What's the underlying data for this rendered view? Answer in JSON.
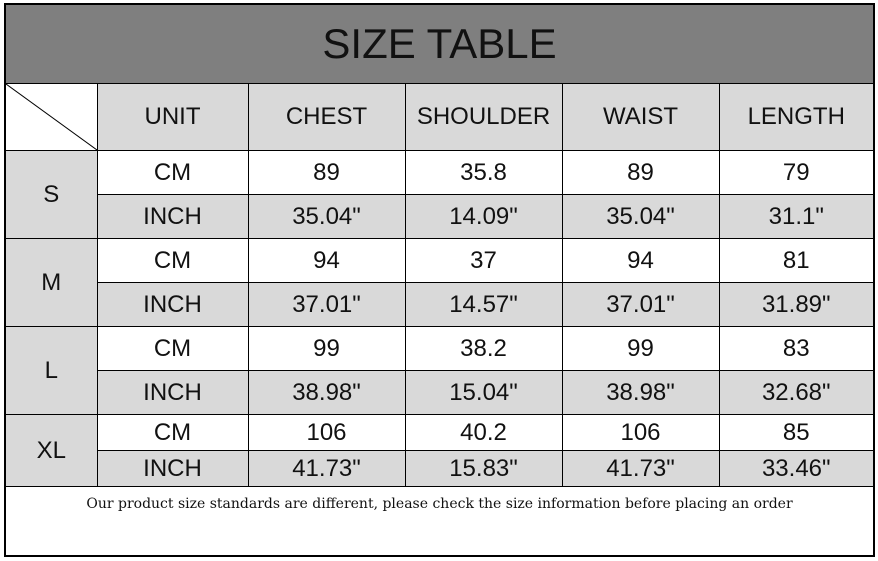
{
  "title": "SIZE TABLE",
  "headers": [
    "UNIT",
    "CHEST",
    "SHOULDER",
    "WAIST",
    "LENGTH"
  ],
  "sizes": [
    {
      "label": "S",
      "cm": {
        "unit": "CM",
        "values": [
          "89",
          "35.8",
          "89",
          "79"
        ]
      },
      "inch": {
        "unit": "INCH",
        "values": [
          "35.04\"",
          "14.09\"",
          "35.04\"",
          "31.1\""
        ]
      }
    },
    {
      "label": "M",
      "cm": {
        "unit": "CM",
        "values": [
          "94",
          "37",
          "94",
          "81"
        ]
      },
      "inch": {
        "unit": "INCH",
        "values": [
          "37.01\"",
          "14.57\"",
          "37.01\"",
          "31.89\""
        ]
      }
    },
    {
      "label": "L",
      "cm": {
        "unit": "CM",
        "values": [
          "99",
          "38.2",
          "99",
          "83"
        ]
      },
      "inch": {
        "unit": "INCH",
        "values": [
          "38.98\"",
          "15.04\"",
          "38.98\"",
          "32.68\""
        ]
      }
    },
    {
      "label": "XL",
      "cm": {
        "unit": "CM",
        "values": [
          "106",
          "40.2",
          "106",
          "85"
        ]
      },
      "inch": {
        "unit": "INCH",
        "values": [
          "41.73\"",
          "15.83\"",
          "41.73\"",
          "33.46\""
        ]
      }
    }
  ],
  "footer": "Our product size standards are different, please check the size information before placing an order",
  "colors": {
    "title_bg": "#7f7f7f",
    "shaded": "#d9d9d9",
    "border": "#000000"
  }
}
